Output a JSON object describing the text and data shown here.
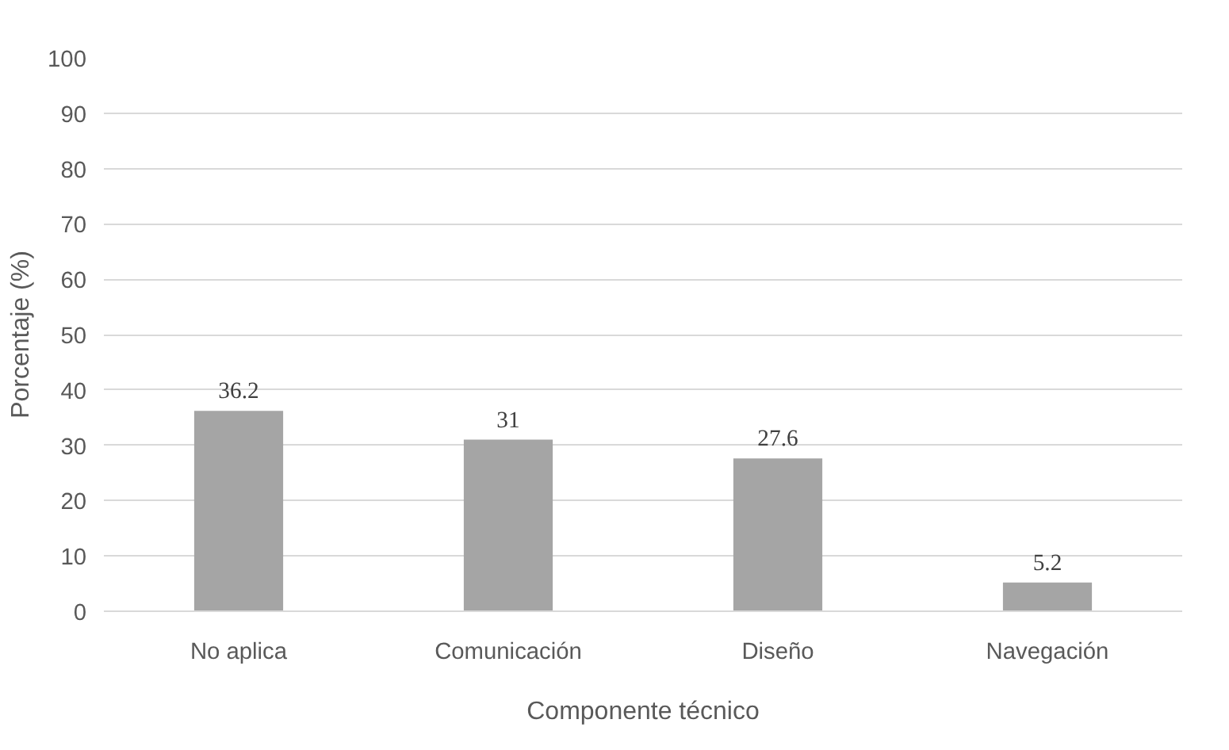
{
  "chart_data": {
    "type": "bar",
    "xlabel": "Componente técnico",
    "ylabel": "Porcentaje (%)",
    "categories": [
      "No aplica",
      "Comunicación",
      "Diseño",
      "Navegación"
    ],
    "values": [
      36.2,
      31,
      27.6,
      5.2
    ],
    "color": "#a5a5a5",
    "ylim": [
      0,
      100
    ],
    "yticks": [
      0,
      10,
      20,
      30,
      40,
      50,
      60,
      70,
      80,
      90,
      100
    ],
    "grid": "y",
    "data_labels": true
  }
}
